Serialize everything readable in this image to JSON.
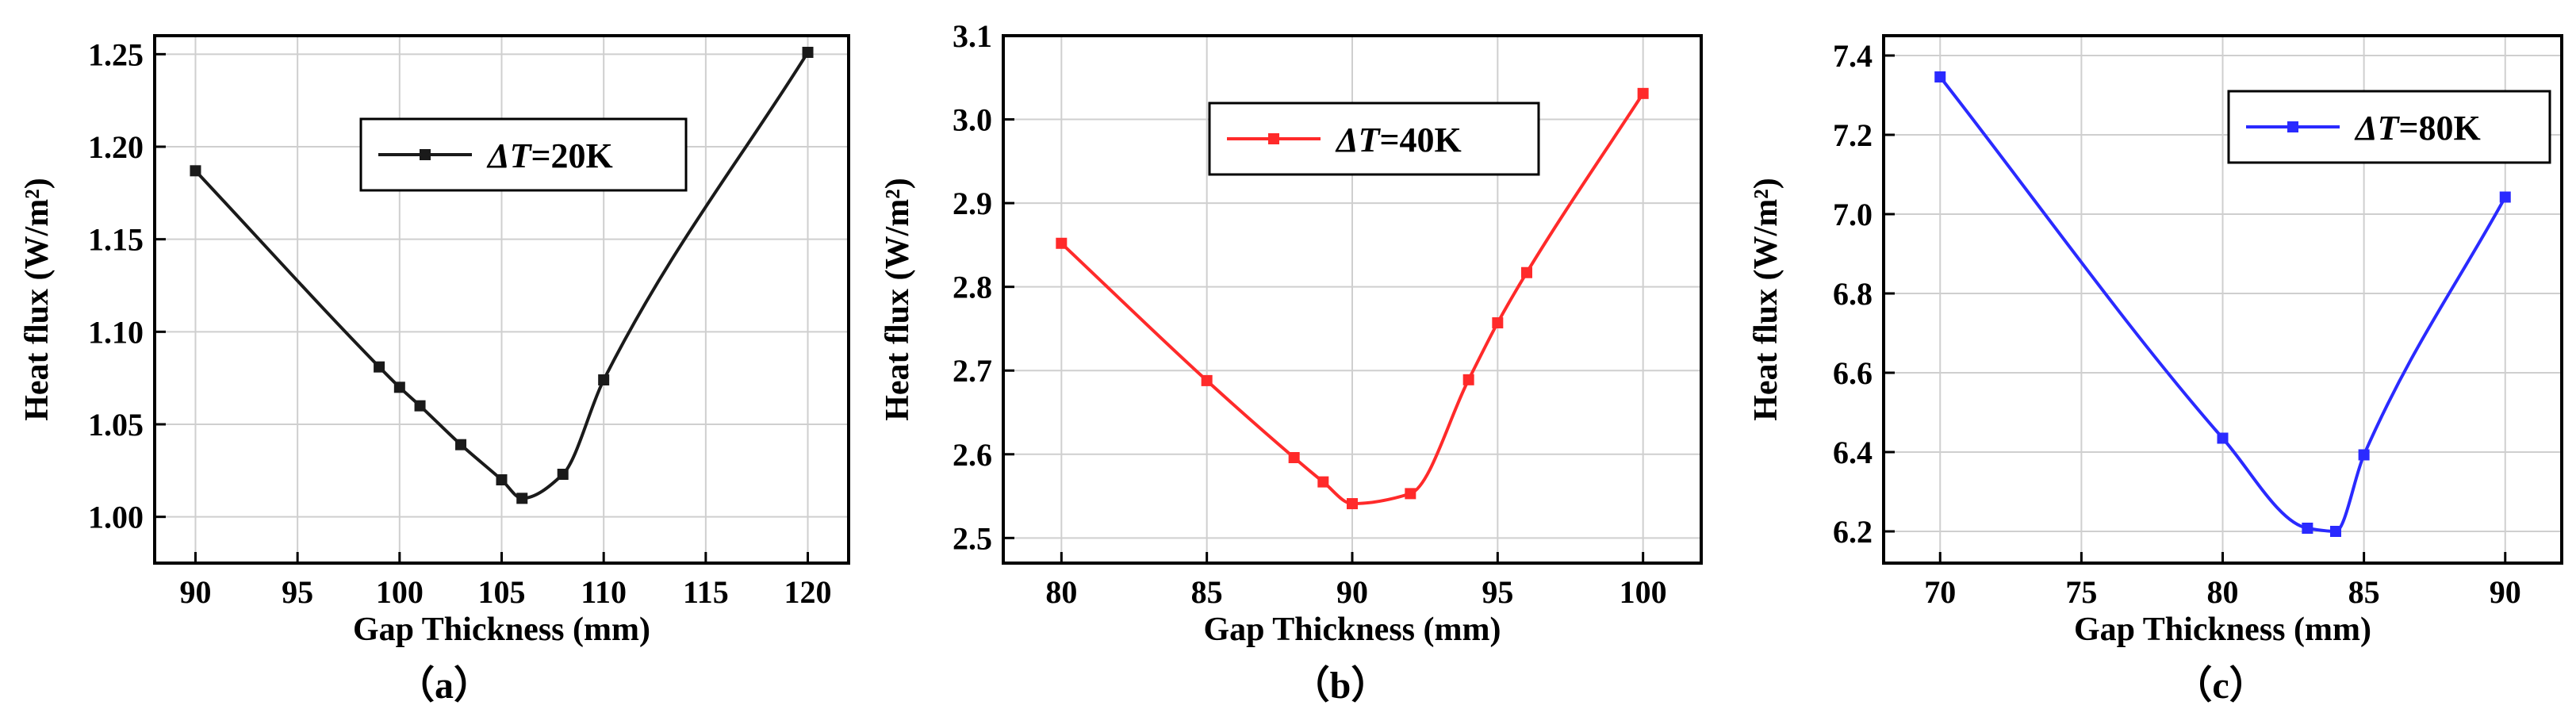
{
  "chart_data": [
    {
      "type": "line",
      "panel_label": "（a）",
      "xlabel": "Gap Thickness (mm)",
      "ylabel": "Heat flux (W/m²)",
      "color": "#1a1a1a",
      "legend": {
        "var": "ΔT",
        "suffix": "=20K",
        "placement": "top-right"
      },
      "grid": true,
      "xlim": [
        88,
        122
      ],
      "ylim": [
        0.975,
        1.26
      ],
      "xticks": [
        90,
        95,
        100,
        105,
        110,
        115,
        120
      ],
      "xtick_labels": [
        "90",
        "95",
        "100",
        "105",
        "110",
        "115",
        "120"
      ],
      "yticks": [
        1.0,
        1.05,
        1.1,
        1.15,
        1.2,
        1.25
      ],
      "ytick_labels": [
        "1.00",
        "1.05",
        "1.10",
        "1.15",
        "1.20",
        "1.25"
      ],
      "x": [
        90,
        99,
        100,
        101,
        103,
        105,
        106,
        108,
        110,
        120
      ],
      "y": [
        1.187,
        1.081,
        1.07,
        1.06,
        1.039,
        1.02,
        1.01,
        1.023,
        1.074,
        1.251
      ]
    },
    {
      "type": "line",
      "panel_label": "（b）",
      "xlabel": "Gap Thickness (mm)",
      "ylabel": "Heat flux (W/m²)",
      "color": "#ff2a2a",
      "legend": {
        "var": "ΔT",
        "suffix": "=40K",
        "placement": "top-right"
      },
      "grid": true,
      "xlim": [
        78,
        102
      ],
      "ylim": [
        2.47,
        3.1
      ],
      "xticks": [
        80,
        85,
        90,
        95,
        100
      ],
      "xtick_labels": [
        "80",
        "85",
        "90",
        "95",
        "100"
      ],
      "yticks": [
        2.5,
        2.6,
        2.7,
        2.8,
        2.9,
        3.0,
        3.1
      ],
      "ytick_labels": [
        "2.5",
        "2.6",
        "2.7",
        "2.8",
        "2.9",
        "3.0",
        "3.1"
      ],
      "x": [
        80,
        85,
        88,
        89,
        90,
        92,
        94,
        95,
        96,
        100
      ],
      "y": [
        2.852,
        2.688,
        2.596,
        2.567,
        2.541,
        2.553,
        2.689,
        2.757,
        2.817,
        3.031
      ]
    },
    {
      "type": "line",
      "panel_label": "（c）",
      "xlabel": "Gap Thickness (mm)",
      "ylabel": "Heat flux (W/m²)",
      "color": "#2a2aff",
      "legend": {
        "var": "ΔT",
        "suffix": "=80K",
        "placement": "top-right"
      },
      "grid": true,
      "xlim": [
        68,
        92
      ],
      "ylim": [
        6.12,
        7.45
      ],
      "xticks": [
        70,
        75,
        80,
        85,
        90
      ],
      "xtick_labels": [
        "70",
        "75",
        "80",
        "85",
        "90"
      ],
      "yticks": [
        6.2,
        6.4,
        6.6,
        6.8,
        7.0,
        7.2,
        7.4
      ],
      "ytick_labels": [
        "6.2",
        "6.4",
        "6.6",
        "6.8",
        "7.0",
        "7.2",
        "7.4"
      ],
      "x": [
        70,
        80,
        83,
        84,
        85,
        90
      ],
      "y": [
        7.346,
        6.435,
        6.208,
        6.2,
        6.393,
        7.043
      ]
    }
  ]
}
